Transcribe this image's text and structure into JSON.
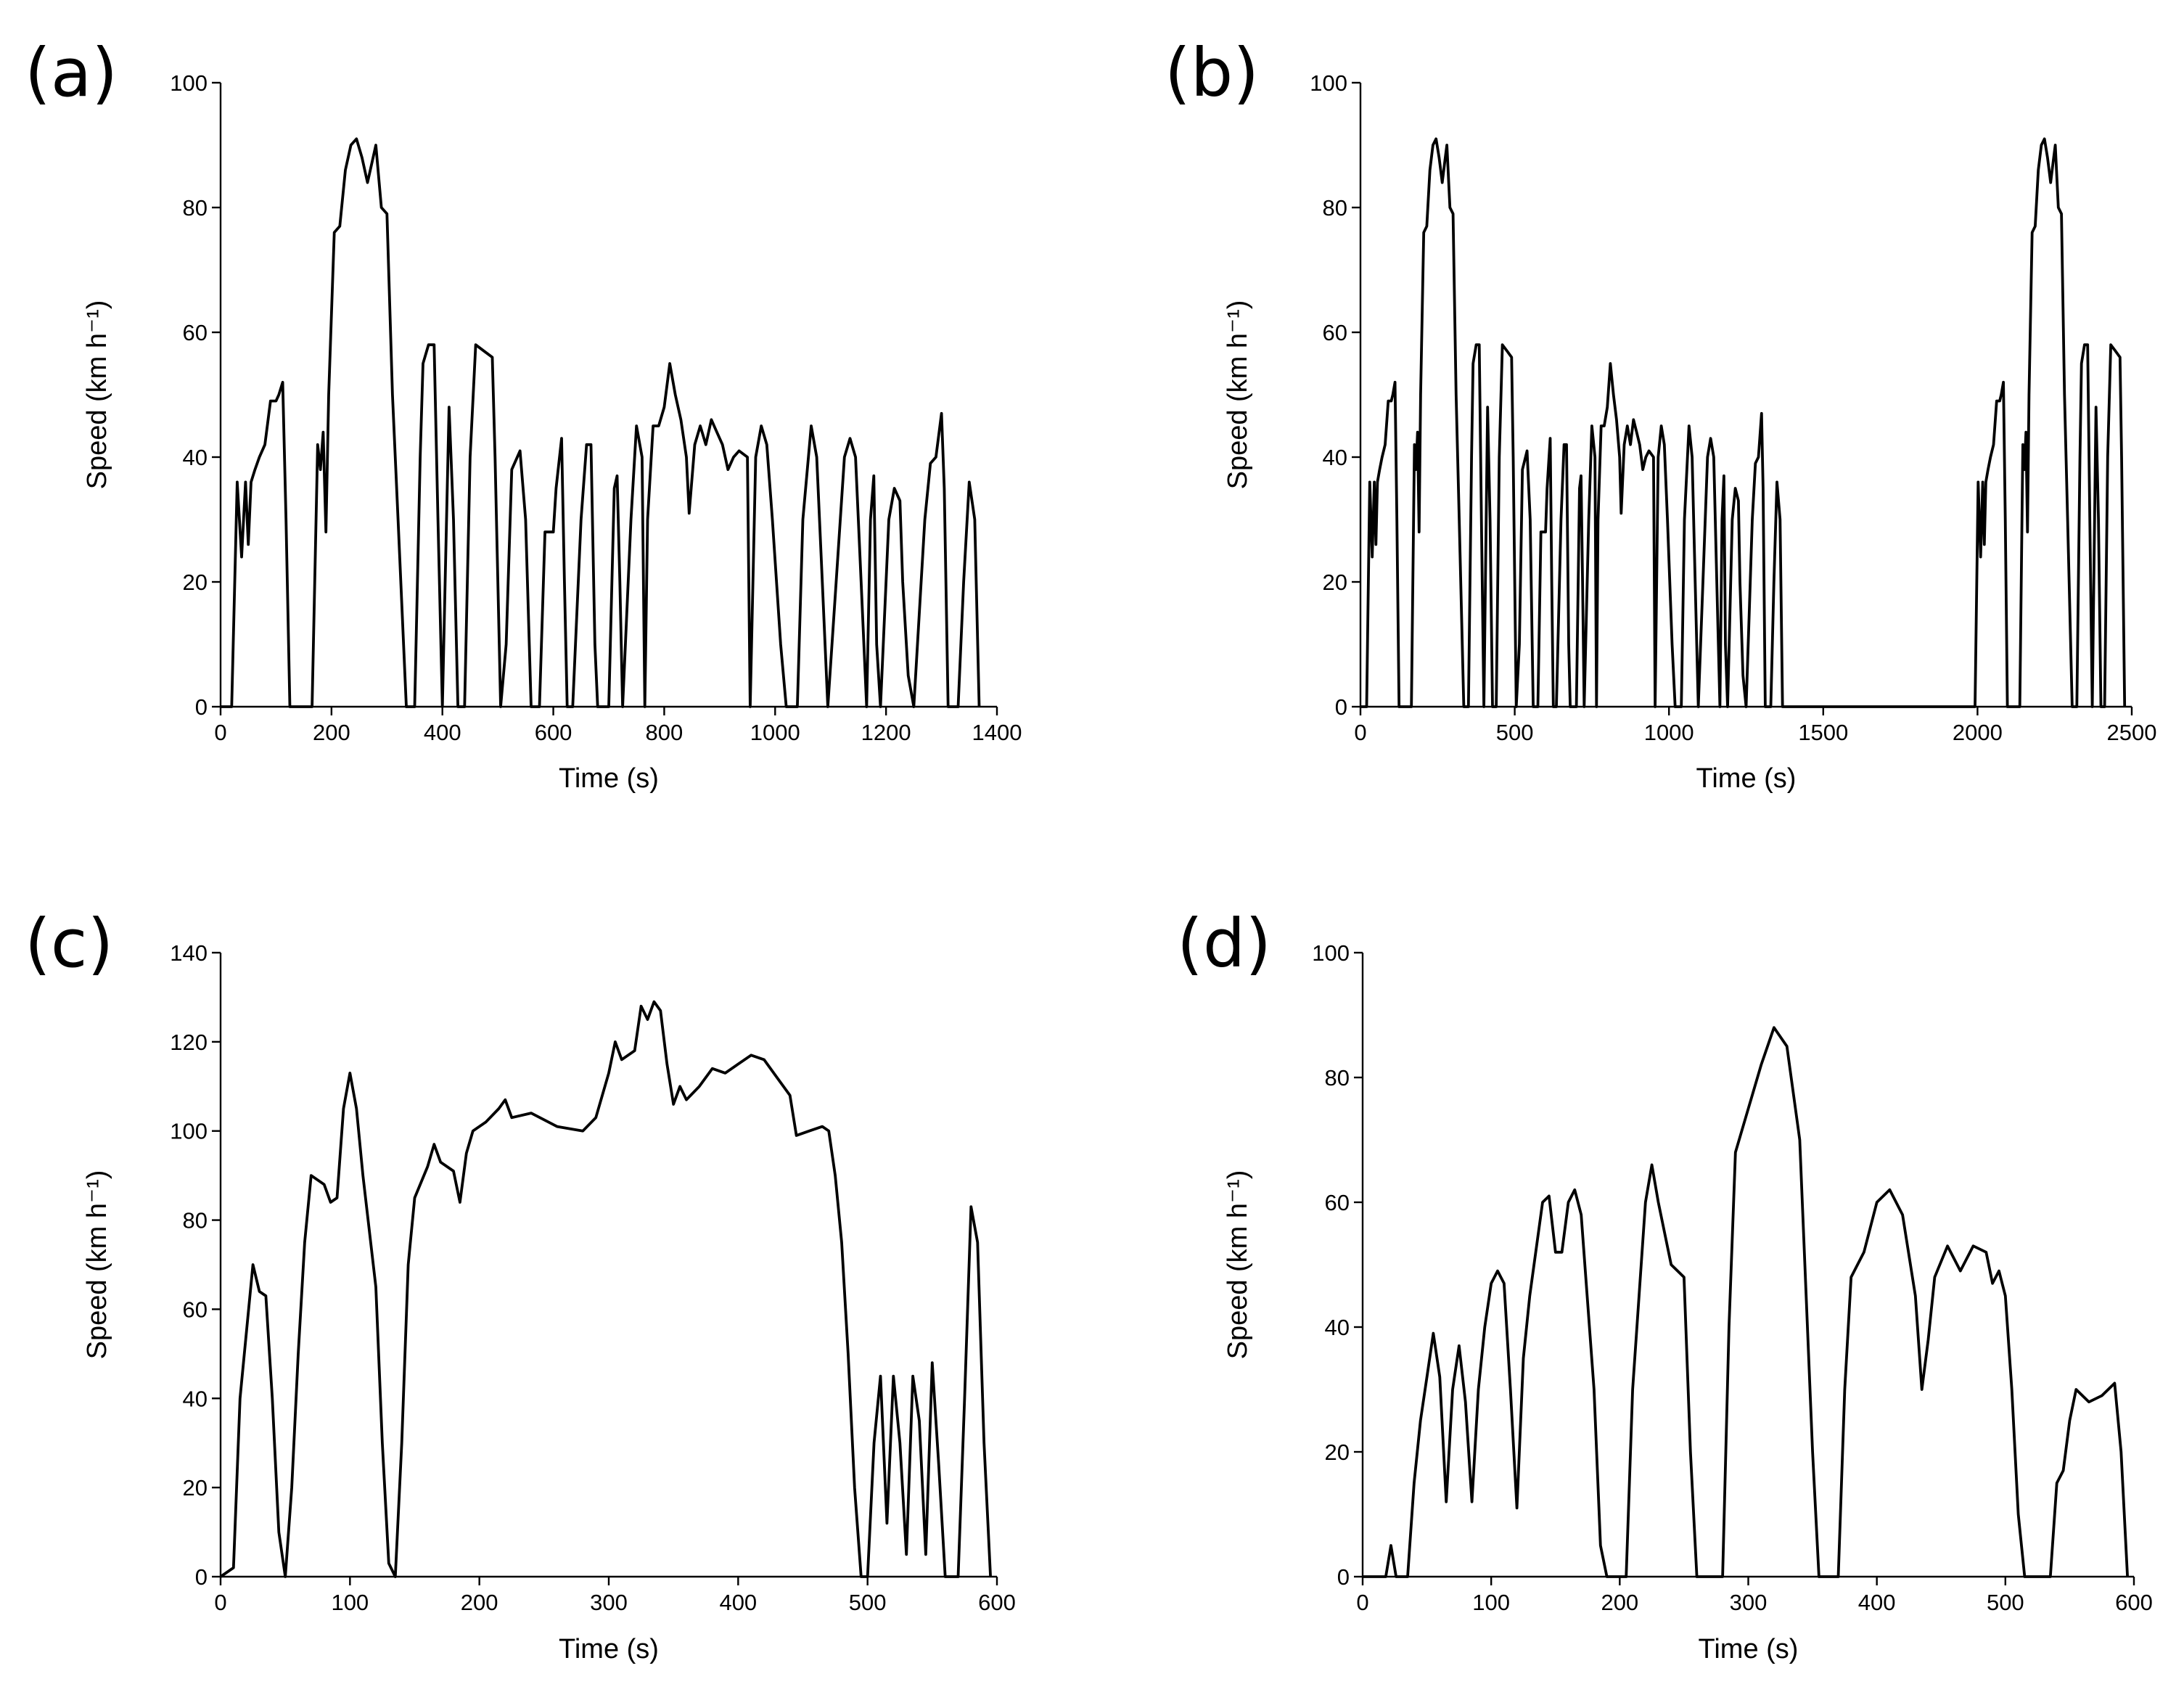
{
  "chart_data": [
    {
      "type": "line",
      "panel_label": "(a)",
      "xlabel": "Time (s)",
      "ylabel": "Speed (km h⁻¹)",
      "color": "#000000",
      "xlim": [
        0,
        1400
      ],
      "ylim": [
        0,
        100
      ],
      "xticks": [
        0,
        200,
        400,
        600,
        800,
        1000,
        1200,
        1400
      ],
      "yticks": [
        0,
        20,
        40,
        60,
        80,
        100
      ],
      "x": [
        0,
        20,
        30,
        38,
        45,
        50,
        55,
        62,
        70,
        80,
        90,
        100,
        105,
        112,
        118,
        125,
        165,
        175,
        180,
        185,
        190,
        195,
        205,
        215,
        225,
        235,
        245,
        255,
        265,
        275,
        280,
        290,
        300,
        310,
        320,
        335,
        350,
        360,
        365,
        375,
        385,
        392,
        400,
        405,
        412,
        420,
        428,
        440,
        450,
        460,
        475,
        490,
        495,
        505,
        515,
        525,
        540,
        550,
        560,
        575,
        585,
        600,
        605,
        615,
        620,
        625,
        635,
        650,
        660,
        668,
        675,
        680,
        700,
        710,
        715,
        720,
        725,
        740,
        750,
        760,
        765,
        770,
        780,
        790,
        800,
        810,
        820,
        830,
        840,
        845,
        855,
        865,
        875,
        885,
        895,
        905,
        915,
        925,
        935,
        950,
        955,
        965,
        975,
        985,
        995,
        1010,
        1020,
        1040,
        1050,
        1065,
        1075,
        1085,
        1095,
        1110,
        1125,
        1135,
        1145,
        1155,
        1165,
        1172,
        1178,
        1183,
        1190,
        1205,
        1215,
        1225,
        1230,
        1240,
        1250,
        1260,
        1270,
        1280,
        1290,
        1300,
        1305,
        1312,
        1330,
        1340,
        1350,
        1360,
        1368
      ],
      "values": [
        0,
        0,
        36,
        24,
        36,
        26,
        36,
        38,
        40,
        42,
        49,
        49,
        50,
        52,
        30,
        0,
        0,
        42,
        38,
        44,
        28,
        50,
        76,
        77,
        86,
        90,
        91,
        88,
        84,
        88,
        90,
        80,
        79,
        50,
        30,
        0,
        0,
        40,
        55,
        58,
        58,
        30,
        0,
        20,
        48,
        30,
        0,
        0,
        40,
        58,
        57,
        56,
        40,
        0,
        10,
        38,
        41,
        30,
        0,
        0,
        28,
        28,
        35,
        43,
        20,
        0,
        0,
        30,
        42,
        42,
        10,
        0,
        0,
        35,
        37,
        20,
        0,
        30,
        45,
        40,
        0,
        30,
        45,
        45,
        48,
        55,
        50,
        46,
        40,
        31,
        42,
        45,
        42,
        46,
        44,
        42,
        38,
        40,
        41,
        40,
        0,
        40,
        45,
        42,
        30,
        10,
        0,
        0,
        30,
        45,
        40,
        20,
        0,
        20,
        40,
        43,
        40,
        20,
        0,
        30,
        37,
        10,
        0,
        30,
        35,
        33,
        20,
        5,
        0,
        15,
        30,
        39,
        40,
        47,
        35,
        0,
        0,
        20,
        36,
        30,
        0
      ]
    },
    {
      "type": "line",
      "panel_label": "(b)",
      "xlabel": "Time (s)",
      "ylabel": "Speed (km h⁻¹)",
      "color": "#000000",
      "xlim": [
        0,
        2500
      ],
      "ylim": [
        0,
        100
      ],
      "xticks": [
        0,
        500,
        1000,
        1500,
        2000,
        2500
      ],
      "yticks": [
        0,
        20,
        40,
        60,
        80,
        100
      ],
      "x": [
        0,
        20,
        30,
        38,
        45,
        50,
        55,
        62,
        70,
        80,
        90,
        100,
        105,
        112,
        118,
        125,
        165,
        175,
        180,
        185,
        190,
        195,
        205,
        215,
        225,
        235,
        245,
        255,
        265,
        275,
        280,
        290,
        300,
        310,
        320,
        335,
        350,
        360,
        365,
        375,
        385,
        392,
        400,
        405,
        412,
        420,
        428,
        440,
        450,
        460,
        475,
        490,
        495,
        505,
        515,
        525,
        540,
        550,
        560,
        575,
        585,
        600,
        605,
        615,
        620,
        625,
        635,
        650,
        660,
        668,
        675,
        680,
        700,
        710,
        715,
        720,
        725,
        740,
        750,
        760,
        765,
        770,
        780,
        790,
        800,
        810,
        820,
        830,
        840,
        845,
        855,
        865,
        875,
        885,
        895,
        905,
        915,
        925,
        935,
        950,
        955,
        965,
        975,
        985,
        995,
        1010,
        1020,
        1040,
        1050,
        1065,
        1075,
        1085,
        1095,
        1110,
        1125,
        1135,
        1145,
        1155,
        1165,
        1172,
        1178,
        1183,
        1190,
        1205,
        1215,
        1225,
        1230,
        1240,
        1250,
        1260,
        1270,
        1280,
        1290,
        1300,
        1305,
        1312,
        1330,
        1340,
        1350,
        1360,
        1368,
        1992,
        2002,
        2010,
        2017,
        2022,
        2027,
        2034,
        2042,
        2052,
        2062,
        2072,
        2077,
        2084,
        2090,
        2097,
        2137,
        2147,
        2152,
        2157,
        2162,
        2167,
        2177,
        2187,
        2197,
        2207,
        2217,
        2227,
        2237,
        2247,
        2252,
        2262,
        2272,
        2282,
        2292,
        2307,
        2322,
        2332,
        2337,
        2347,
        2357,
        2364,
        2372,
        2377,
        2384,
        2392,
        2400,
        2412,
        2422,
        2432,
        2447,
        2462,
        2467,
        2477
      ],
      "values": [
        0,
        0,
        36,
        24,
        36,
        26,
        36,
        38,
        40,
        42,
        49,
        49,
        50,
        52,
        30,
        0,
        0,
        42,
        38,
        44,
        28,
        50,
        76,
        77,
        86,
        90,
        91,
        88,
        84,
        88,
        90,
        80,
        79,
        50,
        30,
        0,
        0,
        40,
        55,
        58,
        58,
        30,
        0,
        20,
        48,
        30,
        0,
        0,
        40,
        58,
        57,
        56,
        40,
        0,
        10,
        38,
        41,
        30,
        0,
        0,
        28,
        28,
        35,
        43,
        20,
        0,
        0,
        30,
        42,
        42,
        10,
        0,
        0,
        35,
        37,
        20,
        0,
        30,
        45,
        40,
        0,
        30,
        45,
        45,
        48,
        55,
        50,
        46,
        40,
        31,
        42,
        45,
        42,
        46,
        44,
        42,
        38,
        40,
        41,
        40,
        0,
        40,
        45,
        42,
        30,
        10,
        0,
        0,
        30,
        45,
        40,
        20,
        0,
        20,
        40,
        43,
        40,
        20,
        0,
        30,
        37,
        10,
        0,
        30,
        35,
        33,
        20,
        5,
        0,
        15,
        30,
        39,
        40,
        47,
        35,
        0,
        0,
        20,
        36,
        30,
        0,
        0,
        36,
        24,
        36,
        26,
        36,
        38,
        40,
        42,
        49,
        49,
        50,
        52,
        30,
        0,
        0,
        42,
        38,
        44,
        28,
        50,
        76,
        77,
        86,
        90,
        91,
        88,
        84,
        88,
        90,
        80,
        79,
        50,
        30,
        0,
        0,
        40,
        55,
        58,
        58,
        30,
        0,
        20,
        48,
        30,
        0,
        0,
        40,
        58,
        57,
        56,
        40,
        0
      ]
    },
    {
      "type": "line",
      "panel_label": "(c)",
      "xlabel": "Time (s)",
      "ylabel": "Speed (km h⁻¹)",
      "color": "#000000",
      "xlim": [
        0,
        600
      ],
      "ylim": [
        0,
        140
      ],
      "xticks": [
        0,
        100,
        200,
        300,
        400,
        500,
        600
      ],
      "yticks": [
        0,
        20,
        40,
        60,
        80,
        100,
        120,
        140
      ],
      "x": [
        0,
        10,
        15,
        20,
        25,
        30,
        35,
        40,
        45,
        50,
        55,
        60,
        65,
        70,
        80,
        85,
        90,
        95,
        100,
        105,
        110,
        120,
        125,
        130,
        135,
        140,
        145,
        150,
        160,
        165,
        170,
        180,
        185,
        190,
        195,
        205,
        215,
        220,
        225,
        240,
        260,
        280,
        290,
        300,
        305,
        310,
        320,
        325,
        330,
        335,
        340,
        345,
        350,
        355,
        360,
        370,
        380,
        390,
        400,
        410,
        420,
        430,
        440,
        445,
        455,
        465,
        470,
        475,
        480,
        485,
        490,
        495,
        500,
        505,
        510,
        515,
        520,
        525,
        530,
        535,
        540,
        545,
        550,
        555,
        560,
        570,
        575,
        580,
        585,
        590,
        595
      ],
      "values": [
        0,
        2,
        40,
        55,
        70,
        64,
        63,
        40,
        10,
        0,
        20,
        50,
        75,
        90,
        88,
        84,
        85,
        105,
        113,
        105,
        90,
        65,
        30,
        3,
        0,
        30,
        70,
        85,
        92,
        97,
        93,
        91,
        84,
        95,
        100,
        102,
        105,
        107,
        103,
        104,
        101,
        100,
        103,
        113,
        120,
        116,
        118,
        128,
        125,
        129,
        127,
        115,
        106,
        110,
        107,
        110,
        114,
        113,
        115,
        117,
        116,
        112,
        108,
        99,
        100,
        101,
        100,
        90,
        75,
        50,
        20,
        0,
        0,
        30,
        45,
        12,
        45,
        30,
        5,
        45,
        35,
        5,
        48,
        25,
        0,
        0,
        40,
        83,
        75,
        30,
        0
      ]
    },
    {
      "type": "line",
      "panel_label": "(d)",
      "xlabel": "Time (s)",
      "ylabel": "Speed (km h⁻¹)",
      "color": "#000000",
      "xlim": [
        0,
        600
      ],
      "ylim": [
        0,
        100
      ],
      "xticks": [
        0,
        100,
        200,
        300,
        400,
        500,
        600
      ],
      "yticks": [
        0,
        20,
        40,
        60,
        80,
        100
      ],
      "x": [
        0,
        18,
        22,
        26,
        35,
        40,
        45,
        50,
        55,
        60,
        65,
        70,
        75,
        80,
        85,
        90,
        95,
        100,
        105,
        110,
        115,
        120,
        125,
        130,
        140,
        145,
        150,
        155,
        160,
        165,
        170,
        180,
        185,
        190,
        205,
        210,
        220,
        225,
        230,
        240,
        250,
        255,
        260,
        280,
        285,
        290,
        300,
        310,
        320,
        330,
        340,
        350,
        355,
        370,
        375,
        380,
        390,
        400,
        410,
        420,
        430,
        435,
        440,
        445,
        455,
        465,
        475,
        485,
        490,
        495,
        500,
        505,
        510,
        515,
        535,
        540,
        545,
        550,
        555,
        565,
        575,
        585,
        590,
        595
      ],
      "values": [
        0,
        0,
        5,
        0,
        0,
        15,
        25,
        32,
        39,
        32,
        12,
        30,
        37,
        28,
        12,
        30,
        40,
        47,
        49,
        47,
        30,
        11,
        35,
        45,
        60,
        61,
        52,
        52,
        60,
        62,
        58,
        30,
        5,
        0,
        0,
        30,
        60,
        66,
        60,
        50,
        48,
        20,
        0,
        0,
        40,
        68,
        75,
        82,
        88,
        85,
        70,
        20,
        0,
        0,
        30,
        48,
        52,
        60,
        62,
        58,
        45,
        30,
        38,
        48,
        53,
        49,
        53,
        52,
        47,
        49,
        45,
        30,
        10,
        0,
        0,
        15,
        17,
        25,
        30,
        28,
        29,
        31,
        20,
        0
      ]
    }
  ]
}
